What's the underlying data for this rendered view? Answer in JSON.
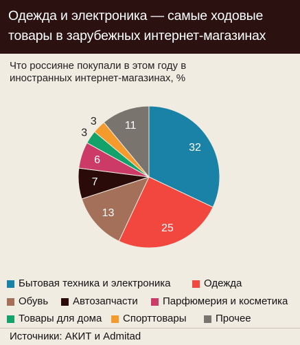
{
  "header": {
    "title": "Одежда и электроника — самые ходовые товары в зарубежных интернет-магазинах"
  },
  "source": "Источники:  АКИТ и Admitad",
  "chart_data": {
    "type": "pie",
    "title": "Одежда и электроника — самые ходовые товары в зарубежных интернет-магазинах",
    "subtitle": "Что россияне покупали в этом году в иностранных интернет-магазинах, %",
    "legend_position": "bottom",
    "slices": [
      {
        "label": "Бытовая техника и электроника",
        "value": 32,
        "color": "#1a82a7"
      },
      {
        "label": "Одежда",
        "value": 25,
        "color": "#f2473f"
      },
      {
        "label": "Обувь",
        "value": 13,
        "color": "#a4705a"
      },
      {
        "label": "Автозапчасти",
        "value": 7,
        "color": "#2b0b09"
      },
      {
        "label": "Парфюмерия и косметика",
        "value": 6,
        "color": "#cc3a67"
      },
      {
        "label": "Товары для дома",
        "value": 3,
        "color": "#13a36a"
      },
      {
        "label": "Спорттовары",
        "value": 3,
        "color": "#f59a2d"
      },
      {
        "label": "Прочее",
        "value": 11,
        "color": "#79746d"
      }
    ]
  }
}
